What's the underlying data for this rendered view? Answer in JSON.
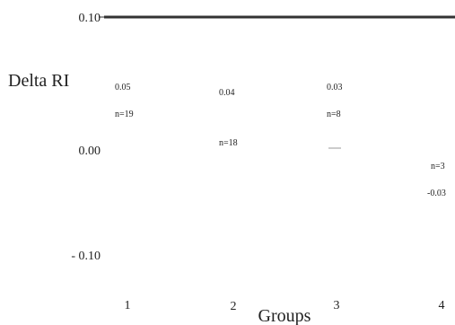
{
  "chart_data": {
    "type": "scatter",
    "xlabel": "Groups",
    "ylabel": "Delta RI",
    "ylim": [
      -0.1,
      0.1
    ],
    "yticks": [
      "0.10",
      "0.00",
      "- 0.10"
    ],
    "ytick_values": [
      0.1,
      0.0,
      -0.1
    ],
    "categories": [
      "1",
      "2",
      "3",
      "4"
    ],
    "values": [
      0.05,
      0.04,
      0.03,
      -0.03
    ],
    "value_labels": [
      "0.05",
      "0.04",
      "0.03",
      "-0.03"
    ],
    "n_labels": [
      "n=19",
      "n=18",
      "n=8",
      "n=3"
    ],
    "grid": false,
    "colors": {
      "text": "#222222",
      "axis_line": "#333333",
      "marker": "#999999"
    }
  }
}
